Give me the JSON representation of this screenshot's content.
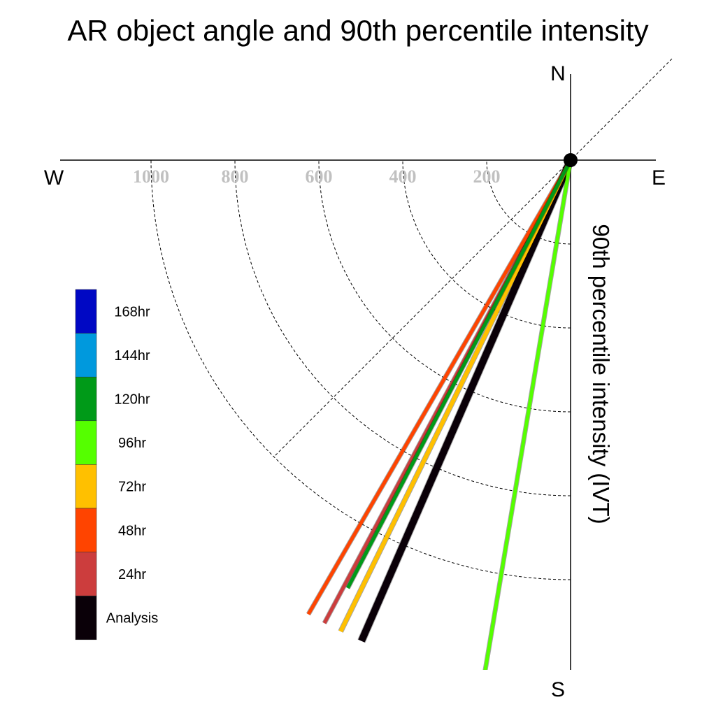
{
  "chart_data": {
    "type": "polar-quadrant",
    "title": "AR object angle and 90th percentile intensity",
    "radial_axis_label": "90th percentile intensity (IVT)",
    "compass": {
      "north": "N",
      "south": "S",
      "east": "E",
      "west": "W"
    },
    "radial_ticks": [
      200,
      400,
      600,
      800,
      1000
    ],
    "radial_max": 1000,
    "series": [
      {
        "name": "Analysis",
        "color": "#0a0008",
        "angle_deg": 203.5,
        "intensity": 1250,
        "width": 10
      },
      {
        "name": "24hr",
        "color": "#cc3d3d",
        "angle_deg": 208.0,
        "intensity": 1250,
        "width": 5
      },
      {
        "name": "48hr",
        "color": "#ff4400",
        "angle_deg": 210.0,
        "intensity": 1250,
        "width": 5
      },
      {
        "name": "72hr",
        "color": "#ffc000",
        "angle_deg": 206.0,
        "intensity": 1250,
        "width": 6
      },
      {
        "name": "96hr",
        "color": "#55ff00",
        "angle_deg": 189.5,
        "intensity": 1250,
        "width": 5
      },
      {
        "name": "120hr",
        "color": "#009a18",
        "angle_deg": 207.5,
        "intensity": 1150,
        "width": 5
      }
    ],
    "legend": [
      {
        "label": "168hr",
        "color": "#0008c4"
      },
      {
        "label": "144hr",
        "color": "#0099dd"
      },
      {
        "label": "120hr",
        "color": "#009a18"
      },
      {
        "label": "96hr",
        "color": "#55ff00"
      },
      {
        "label": "72hr",
        "color": "#ffc000"
      },
      {
        "label": "48hr",
        "color": "#ff4400"
      },
      {
        "label": "24hr",
        "color": "#cc3d3d"
      },
      {
        "label": "Analysis",
        "color": "#0a0008"
      }
    ],
    "legend_placement": "left"
  }
}
